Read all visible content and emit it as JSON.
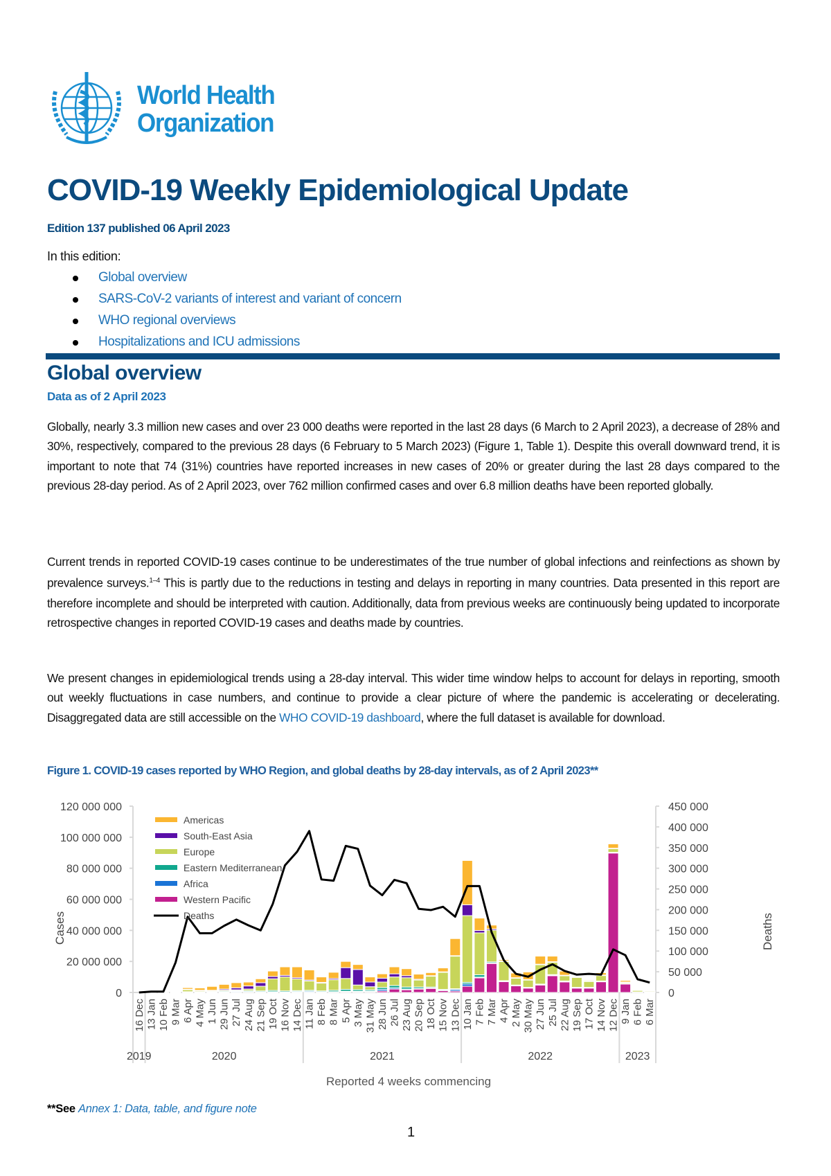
{
  "header": {
    "org_name_line1": "World Health",
    "org_name_line2": "Organization",
    "logo_icon": "who-emblem",
    "title": "COVID-19 Weekly Epidemiological Update",
    "edition": "Edition 137 published 06 April 2023",
    "in_this_edition": "In this edition:",
    "toc": [
      "Global overview",
      "SARS-CoV-2 variants of interest and variant of concern",
      "WHO regional overviews",
      "Hospitalizations and ICU admissions"
    ]
  },
  "section": {
    "title": "Global overview",
    "data_as_of": "Data as of 2 April 2023",
    "para1": "Globally, nearly 3.3 million new cases and over 23 000 deaths were reported in the last 28 days (6 March to 2 April 2023), a decrease of 28% and 30%, respectively, compared to the previous 28 days (6 February to 5 March 2023) (Figure 1, Table 1). Despite this overall downward trend, it is important to note that 74 (31%) countries have reported increases in new cases of 20% or greater during the last 28 days compared to the previous 28-day period. As of 2 April 2023, over 762 million confirmed cases and over 6.8 million deaths have been reported globally.",
    "para2_a": "Current trends in reported COVID-19 cases continue to be underestimates of the true number of global infections and reinfections as shown by prevalence surveys.",
    "para2_sup": "1–4",
    "para2_b": " This is partly due to the reductions in testing and delays in reporting in many countries. Data presented in this report are therefore incomplete and should be interpreted with caution. Additionally, data from previous weeks are continuously being updated to incorporate retrospective changes in reported COVID-19 cases and deaths made by countries.",
    "para3_a": "We present changes in epidemiological trends using a 28-day interval. This wider time window helps to account for delays in reporting, smooth out weekly fluctuations in case numbers, and continue to provide a clear picture of where the pandemic is accelerating or decelerating. Disaggregated data are still accessible on the ",
    "para3_link": "WHO COVID-19 dashboard",
    "para3_b": ", where the full dataset is available for download.",
    "figure_caption": "Figure 1. COVID-19 cases reported by WHO Region, and global deaths by 28-day intervals, as of 2 April 2023**"
  },
  "footnote": {
    "prefix": "**See",
    "link": "Annex 1: Data, table, and figure note"
  },
  "page_number": "1",
  "colors": {
    "title": "#0b4a7e",
    "link": "#1f73b7"
  },
  "chart_data": {
    "type": "bar",
    "stacked": true,
    "xlabel": "Reported 4 weeks commencing",
    "ylabel": "Cases",
    "y2label": "Deaths",
    "ylim": [
      0,
      120000000
    ],
    "y2lim": [
      0,
      450000
    ],
    "yticks": [
      "0",
      "20 000 000",
      "40 000 000",
      "60 000 000",
      "80 000 000",
      "100 000 000",
      "120 000 000"
    ],
    "y2ticks": [
      "0",
      "50 000",
      "100 000",
      "150 000",
      "200 000",
      "250 000",
      "300 000",
      "350 000",
      "400 000",
      "450 000"
    ],
    "legend_position": "top-left",
    "grid": false,
    "categories": [
      "16 Dec",
      "13 Jan",
      "10 Feb",
      "9 Mar",
      "6 Apr",
      "4 May",
      "1 Jun",
      "29 Jun",
      "27 Jul",
      "24 Aug",
      "21 Sep",
      "19 Oct",
      "16 Nov",
      "14 Dec",
      "11 Jan",
      "8 Feb",
      "8 Mar",
      "5 Apr",
      "3 May",
      "31 May",
      "28 Jun",
      "26 Jul",
      "23 Aug",
      "20 Sep",
      "18 Oct",
      "15 Nov",
      "13 Dec",
      "10 Jan",
      "7 Feb",
      "7 Mar",
      "4 Apr",
      "2 May",
      "30 May",
      "27 Jun",
      "25 Jul",
      "22 Aug",
      "19 Sep",
      "17 Oct",
      "14 Nov",
      "12 Dec",
      "9 Jan",
      "6 Feb",
      "6 Mar"
    ],
    "year_groups": [
      {
        "label": "2019",
        "count": 1
      },
      {
        "label": "2020",
        "count": 13
      },
      {
        "label": "2021",
        "count": 13
      },
      {
        "label": "2022",
        "count": 13
      },
      {
        "label": "2023",
        "count": 3
      }
    ],
    "series_unit": "cases (millions)",
    "series": [
      {
        "name": "Western Pacific",
        "color": "#c2208f",
        "values": [
          0,
          0.01,
          0.05,
          0.1,
          0.2,
          0.1,
          0.1,
          0.1,
          0.2,
          0.3,
          0.2,
          0.2,
          0.1,
          0.2,
          0.2,
          0.2,
          0.3,
          0.5,
          0.5,
          0.5,
          1,
          2.2,
          1.7,
          2.2,
          2.7,
          1.3,
          0.9,
          4,
          9.4,
          18.7,
          7.1,
          4.5,
          3,
          4.9,
          10.9,
          7,
          3,
          3,
          7.1,
          90,
          5.7,
          0.3,
          0.2
        ]
      },
      {
        "name": "Africa",
        "color": "#1a74d6",
        "values": [
          0,
          0,
          0,
          0.05,
          0.1,
          0.1,
          0.2,
          0.3,
          0.5,
          0.3,
          0.2,
          0.3,
          0.2,
          0.4,
          0.6,
          0.2,
          0.2,
          0.3,
          0.3,
          0.4,
          1,
          0.8,
          0.5,
          0.3,
          0.2,
          0.2,
          1,
          1.5,
          0.5,
          0.3,
          0.2,
          0.1,
          0.1,
          0.2,
          0.2,
          0.1,
          0.1,
          0.1,
          0.1,
          0.1,
          0.05,
          0.02,
          0.02
        ]
      },
      {
        "name": "Eastern Mediterranean",
        "color": "#11a88e",
        "values": [
          0,
          0,
          0,
          0.05,
          0.2,
          0.3,
          0.3,
          0.5,
          0.5,
          0.6,
          0.6,
          0.8,
          0.7,
          0.6,
          0.6,
          0.6,
          0.9,
          1.2,
          1,
          0.8,
          1.2,
          1.5,
          1.3,
          1,
          0.6,
          0.5,
          0.5,
          1,
          1.5,
          0.7,
          0.3,
          0.2,
          0.2,
          0.3,
          0.4,
          0.3,
          0.2,
          0.2,
          0.2,
          0.2,
          0.1,
          0.05,
          0.05
        ]
      },
      {
        "name": "Europe",
        "color": "#c7d55a",
        "values": [
          0,
          0,
          0.05,
          0.4,
          1.5,
          0.7,
          0.5,
          0.6,
          0.5,
          1,
          3,
          7.5,
          9,
          7.5,
          6,
          5,
          6.8,
          7,
          3,
          2,
          3.5,
          5.5,
          6,
          4.5,
          7,
          11,
          21,
          43,
          27,
          20.4,
          12.4,
          4.5,
          4.8,
          12.5,
          8,
          3.4,
          6.5,
          4,
          3.7,
          2.4,
          0.8,
          1.2,
          0.8
        ]
      },
      {
        "name": "South-East Asia",
        "color": "#5a0fa8",
        "values": [
          0,
          0,
          0,
          0.02,
          0.1,
          0.2,
          0.3,
          0.7,
          1.3,
          2,
          2.3,
          1.5,
          1,
          0.8,
          0.6,
          0.5,
          0.8,
          7,
          10,
          3,
          2.5,
          2,
          1.3,
          0.5,
          0.3,
          0.3,
          0.3,
          7,
          1.5,
          0.8,
          0.3,
          0.2,
          0.2,
          0.3,
          0.3,
          0.3,
          0.2,
          0.1,
          0.1,
          0.2,
          0.1,
          0.05,
          0.05
        ]
      },
      {
        "name": "Americas",
        "color": "#fbb631",
        "values": [
          0,
          0,
          0.01,
          0.3,
          1,
          1.5,
          2.5,
          3,
          3.3,
          2.5,
          2.5,
          3.5,
          5.5,
          7,
          6.5,
          3.5,
          4,
          4,
          3.2,
          3.3,
          2.8,
          4.5,
          4.5,
          3.3,
          2,
          2.5,
          11,
          28.5,
          8,
          2.5,
          0.8,
          3,
          4.9,
          5.2,
          3.6,
          2.7,
          0.4,
          0.5,
          1.5,
          2.8,
          1,
          0.3,
          0.1
        ]
      }
    ],
    "legend_order": [
      "Americas",
      "South-East Asia",
      "Europe",
      "Eastern Mediterranean",
      "Africa",
      "Western Pacific",
      "Deaths"
    ],
    "deaths": {
      "name": "Deaths",
      "color": "#000000",
      "unit": "deaths (thousands)",
      "values": [
        0,
        2,
        2,
        72,
        183,
        143,
        143,
        161,
        176,
        162,
        150,
        214,
        307,
        340,
        390,
        273,
        270,
        354,
        347,
        258,
        235,
        272,
        264,
        202,
        199,
        207,
        183,
        257,
        257,
        145,
        78,
        45,
        38,
        55,
        68,
        52,
        43,
        45,
        43,
        104,
        90,
        32,
        24
      ]
    }
  }
}
